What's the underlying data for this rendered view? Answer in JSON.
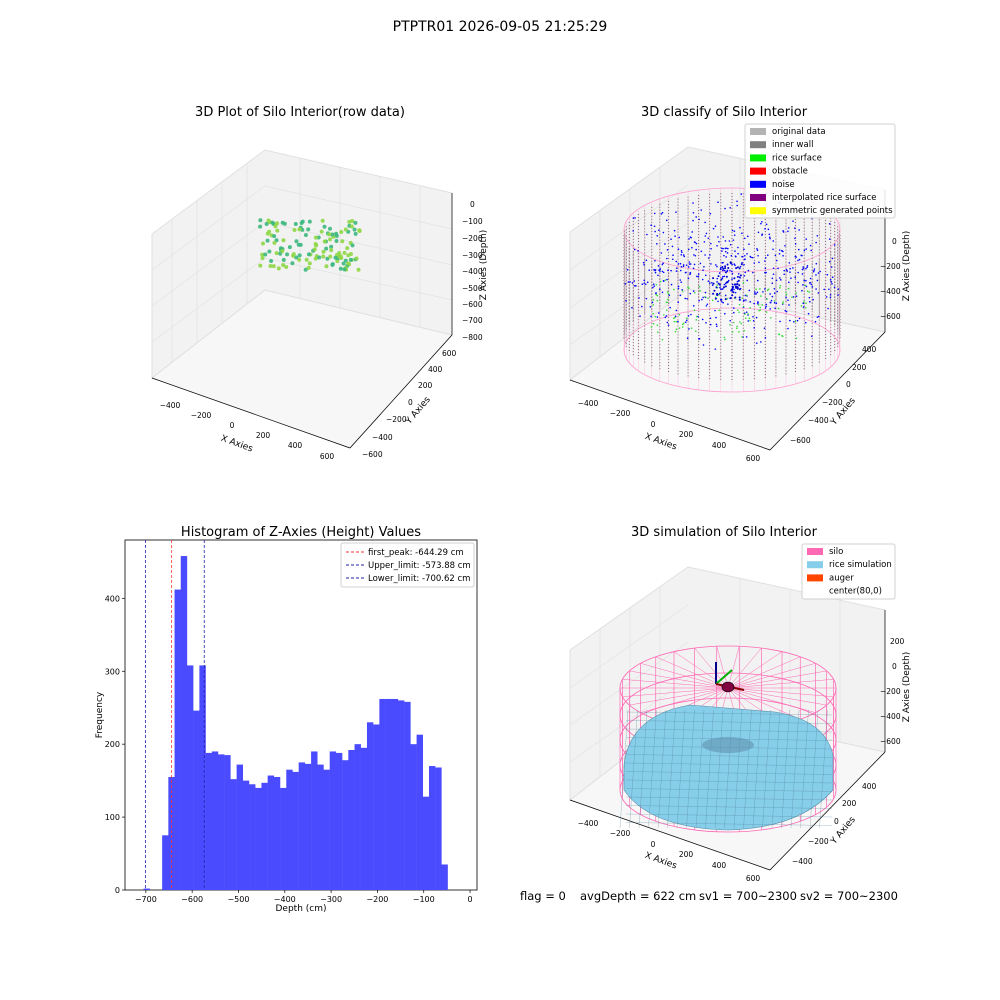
{
  "figure_title": "PTPTR01 2026-09-05 21:25:29",
  "footer": {
    "flag": "flag = 0",
    "avg_depth": "avgDepth = 622 cm",
    "sv1": "sv1 = 700~2300",
    "sv2": "sv2 = 700~2300"
  },
  "colors": {
    "histogram_bar": "#4a4aff",
    "first_peak_line": "#ff3333",
    "limit_lines": "#2222aa",
    "silo_wire": "#ff69b4",
    "rice_surface": "#87ceeb",
    "auger": "#ff4500",
    "noise": "#0000ff",
    "inner_wall": "#808080",
    "rice_surface_class": "#00ee00"
  },
  "chart_data": [
    {
      "type": "scatter3d",
      "title": "3D Plot of Silo Interior(row data)",
      "xlabel": "X Axies",
      "ylabel": "Y Axies",
      "zlabel": "Z Axies (Depth)",
      "x_ticks": [
        "−400",
        "−200",
        "0",
        "200",
        "400",
        "600"
      ],
      "y_ticks": [
        "−600",
        "−400",
        "−200",
        "0",
        "200",
        "400",
        "600"
      ],
      "z_ticks": [
        "0",
        "−100",
        "−200",
        "−300",
        "−400",
        "−500",
        "−600",
        "−700",
        "−800"
      ],
      "colormap": "viridis"
    },
    {
      "type": "scatter3d",
      "title": "3D classify of Silo Interior",
      "xlabel": "X Axies",
      "ylabel": "Y Axies",
      "zlabel": "Z Axies (Depth)",
      "x_ticks": [
        "−400",
        "−200",
        "0",
        "200",
        "400",
        "600"
      ],
      "y_ticks": [
        "−600",
        "−400",
        "−200",
        "0",
        "200",
        "400"
      ],
      "z_ticks": [
        "0",
        "−200",
        "−400",
        "−600"
      ],
      "legend": [
        {
          "label": "original data",
          "color": "#b3b3b3"
        },
        {
          "label": "inner wall",
          "color": "#808080"
        },
        {
          "label": "rice surface",
          "color": "#00ee00"
        },
        {
          "label": "obstacle",
          "color": "#ff0000"
        },
        {
          "label": "noise",
          "color": "#0000ff"
        },
        {
          "label": "interpolated rice surface",
          "color": "#800080"
        },
        {
          "label": "symmetric generated points",
          "color": "#ffff00"
        }
      ]
    },
    {
      "type": "bar",
      "title": "Histogram of Z-Axies (Height) Values",
      "xlabel": "Depth (cm)",
      "ylabel": "Frequency",
      "xlim": [
        -745,
        15
      ],
      "ylim": [
        0,
        480
      ],
      "x_ticks": [
        -700,
        -600,
        -500,
        -400,
        -300,
        -200,
        -100,
        0
      ],
      "y_ticks": [
        0,
        100,
        200,
        300,
        400
      ],
      "bin_start": -705,
      "bin_width": 13.4,
      "values": [
        2,
        0,
        0,
        75,
        155,
        412,
        458,
        308,
        246,
        308,
        188,
        190,
        186,
        185,
        152,
        172,
        150,
        145,
        140,
        147,
        157,
        155,
        140,
        165,
        162,
        175,
        173,
        190,
        172,
        165,
        190,
        188,
        178,
        192,
        200,
        195,
        230,
        227,
        262,
        262,
        262,
        260,
        258,
        200,
        213,
        128,
        170,
        168,
        35
      ],
      "vlines": [
        {
          "label": "first_peak: -644.29 cm",
          "x": -644.29,
          "color": "#ff3333"
        },
        {
          "label": "Upper_limit: -573.88 cm",
          "x": -573.88,
          "color": "#2222aa"
        },
        {
          "label": "Lower_limit: -700.62 cm",
          "x": -700.62,
          "color": "#2222aa"
        }
      ],
      "legend_position": "top-right"
    },
    {
      "type": "surface3d",
      "title": "3D simulation of Silo Interior",
      "xlabel": "X Axies",
      "ylabel": "Y Axies",
      "zlabel": "Z Axies (Depth)",
      "x_ticks": [
        "−400",
        "−200",
        "0",
        "200",
        "400",
        "600"
      ],
      "y_ticks": [
        "−400",
        "−200",
        "0",
        "200",
        "400"
      ],
      "z_ticks": [
        "200",
        "0",
        "−200",
        "−400",
        "−600"
      ],
      "legend": [
        {
          "label": "silo",
          "color": "#ff69b4"
        },
        {
          "label": "rice simulation",
          "color": "#87ceeb"
        },
        {
          "label": "auger",
          "color": "#ff4500"
        },
        {
          "label": "center(80,0)",
          "color": "none"
        }
      ]
    }
  ]
}
